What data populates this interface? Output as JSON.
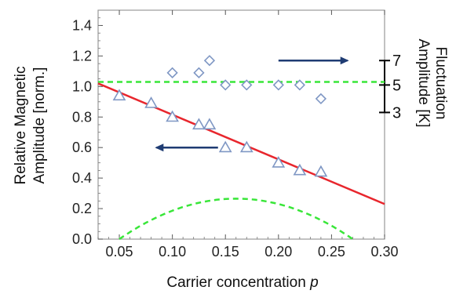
{
  "chart_data": {
    "type": "scatter",
    "xlabel": "Carrier concentration",
    "xlabel_var": "p",
    "ylabel_left": [
      "Relative Magnetic",
      "Amplitude [norm.]"
    ],
    "ylabel_right": [
      "Fluctuation",
      "Amplitude [K]"
    ],
    "xlim": [
      0.03,
      0.3
    ],
    "ylim": [
      0.0,
      1.5
    ],
    "x_ticks": [
      "0.05",
      "0.10",
      "0.15",
      "0.20",
      "0.25",
      "0.30"
    ],
    "y_ticks": [
      "0.0",
      "0.2",
      "0.4",
      "0.6",
      "0.8",
      "1.0",
      "1.2",
      "1.4"
    ],
    "right_ticks": [
      {
        "label": "7",
        "y": 1.17
      },
      {
        "label": "5",
        "y": 1.01
      },
      {
        "label": "3",
        "y": 0.83
      }
    ],
    "grid": false,
    "series": [
      {
        "marker": "triangle",
        "color": "#7f97c4",
        "points": [
          [
            0.05,
            0.94
          ],
          [
            0.08,
            0.89
          ],
          [
            0.1,
            0.8
          ],
          [
            0.125,
            0.75
          ],
          [
            0.135,
            0.75
          ],
          [
            0.15,
            0.6
          ],
          [
            0.17,
            0.6
          ],
          [
            0.2,
            0.5
          ],
          [
            0.22,
            0.45
          ],
          [
            0.24,
            0.44
          ]
        ]
      },
      {
        "marker": "diamond",
        "color": "#7f97c4",
        "points": [
          [
            0.1,
            1.09
          ],
          [
            0.125,
            1.09
          ],
          [
            0.135,
            1.17
          ],
          [
            0.15,
            1.01
          ],
          [
            0.17,
            1.01
          ],
          [
            0.2,
            1.01
          ],
          [
            0.22,
            1.01
          ],
          [
            0.24,
            0.92
          ]
        ]
      }
    ],
    "fit_line": {
      "color": "#e8262d",
      "x": [
        0.03,
        0.3
      ],
      "y": [
        1.02,
        0.23
      ]
    },
    "dashed_hline": {
      "color": "#39e639",
      "y": 1.03
    },
    "dashed_curve": {
      "color": "#39e639",
      "x0": 0.05,
      "x1": 0.27,
      "peak": 0.265
    },
    "arrows": [
      {
        "direction": "left",
        "color": "#1f3c73",
        "from": [
          0.143,
          0.6
        ],
        "to": [
          0.085,
          0.6
        ]
      },
      {
        "direction": "right",
        "color": "#1f3c73",
        "from": [
          0.2,
          1.17
        ],
        "to": [
          0.265,
          1.17
        ]
      }
    ]
  }
}
